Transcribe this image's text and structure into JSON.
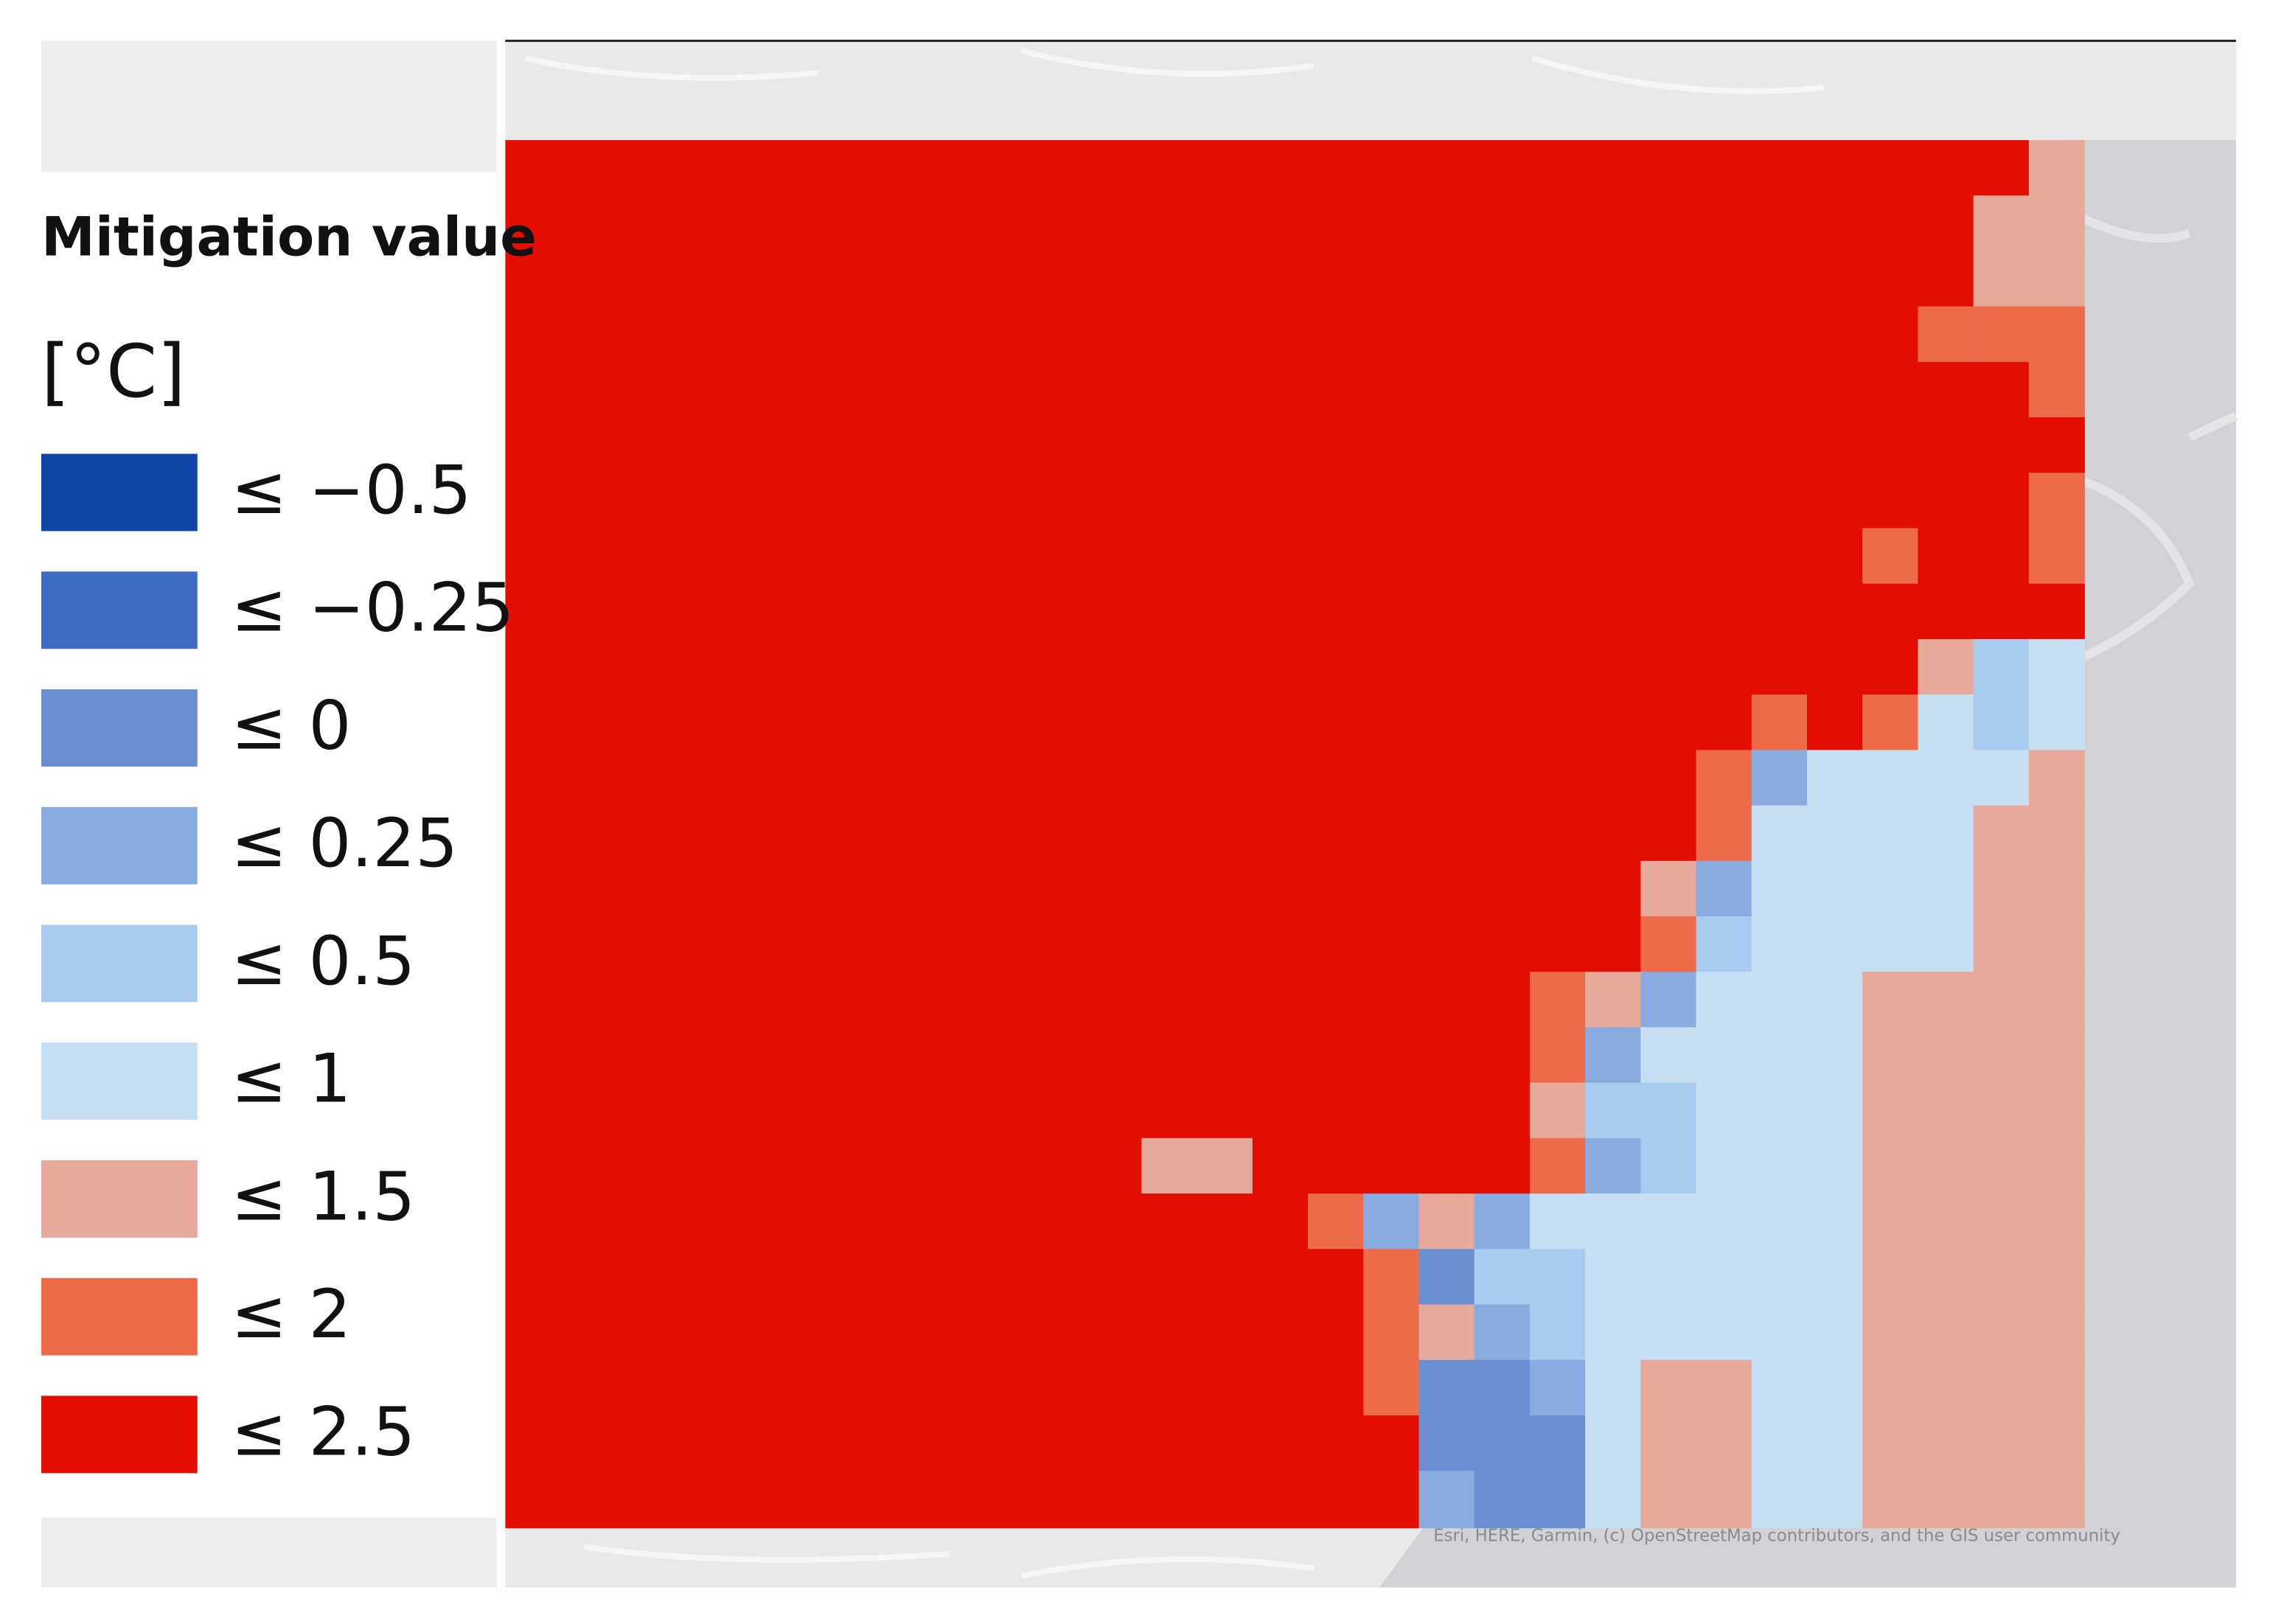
{
  "legend": {
    "title": "Mitigation value",
    "unit": "[°C]",
    "classes": [
      {
        "label": "≤ −0.5",
        "color": "#0f46a8"
      },
      {
        "label": "≤ −0.25",
        "color": "#3f6bc1"
      },
      {
        "label": "≤ 0",
        "color": "#6a8ed2"
      },
      {
        "label": "≤ 0.25",
        "color": "#8aabe0"
      },
      {
        "label": "≤ 0.5",
        "color": "#a8ccf0"
      },
      {
        "label": "≤ 1",
        "color": "#c6dff2"
      },
      {
        "label": "≤ 1.5",
        "color": "#e6aa9c"
      },
      {
        "label": "≤ 2",
        "color": "#ee6b4a"
      },
      {
        "label": "≤ 2.5",
        "color": "#e30d00"
      }
    ]
  },
  "grid": [
    "8888888888888888888888888886",
    "8888888888888888888888888866",
    "8888888888888888888888888866",
    "8888888888888888888888888777",
    "8888888888888888888888888887",
    "8888888888888888888888888888",
    "8888888888888888888888888887",
    "8888888888888888888888887887",
    "8888888888888888888888888888",
    "8888888888888888888888888645",
    "8888888888888888888888787545",
    "8888888888888888888887355556",
    "8888888888888888888887555566",
    "8888888888888888888863555566",
    "8888888888888888888874555566",
    "8888888888888888887635556666",
    "8888888888888888887355556666",
    "8888888888888888886445556666",
    "8888888888866888887345556666",
    "8888888888888873635555556666",
    "8888888888888887244555556666",
    "8888888888888887634555556666",
    "8888888888888887223566556666",
    "8888888888888888222566556666",
    "8888888888888888322566556666"
  ],
  "attribution": "Esri, HERE, Garmin, (c) OpenStreetMap contributors, and the GIS user community"
}
